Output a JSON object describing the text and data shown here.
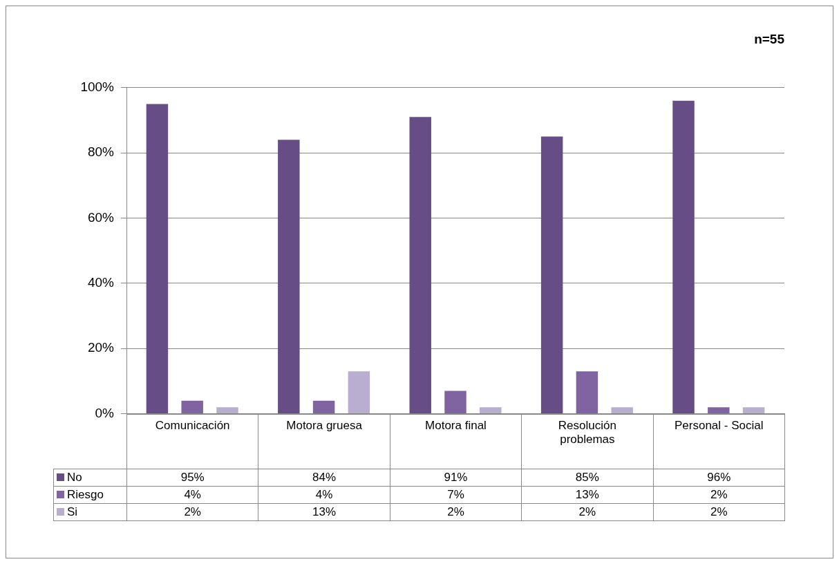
{
  "chart_data": {
    "type": "bar",
    "title": "n=55",
    "categories": [
      "Comunicación",
      "Motora gruesa",
      "Motora final",
      "Resolución problemas",
      "Personal - Social"
    ],
    "series": [
      {
        "name": "No",
        "color": "#664d86",
        "values": [
          95,
          84,
          91,
          85,
          96
        ],
        "value_labels": [
          "95%",
          "84%",
          "91%",
          "85%",
          "96%"
        ]
      },
      {
        "name": "Riesgo",
        "color": "#8064a2",
        "values": [
          4,
          4,
          7,
          13,
          2
        ],
        "value_labels": [
          "4%",
          "4%",
          "7%",
          "13%",
          "2%"
        ]
      },
      {
        "name": "Si",
        "color": "#b9aed0",
        "values": [
          2,
          13,
          2,
          2,
          2
        ],
        "value_labels": [
          "2%",
          "13%",
          "2%",
          "2%",
          "2%"
        ]
      }
    ],
    "ylim": [
      0,
      100
    ],
    "yticks": [
      {
        "value": 0,
        "label": "0%"
      },
      {
        "value": 20,
        "label": "20%"
      },
      {
        "value": 40,
        "label": "40%"
      },
      {
        "value": 60,
        "label": "60%"
      },
      {
        "value": 80,
        "label": "80%"
      },
      {
        "value": 100,
        "label": "100%"
      }
    ],
    "grid": "y",
    "legend": "bottom"
  }
}
